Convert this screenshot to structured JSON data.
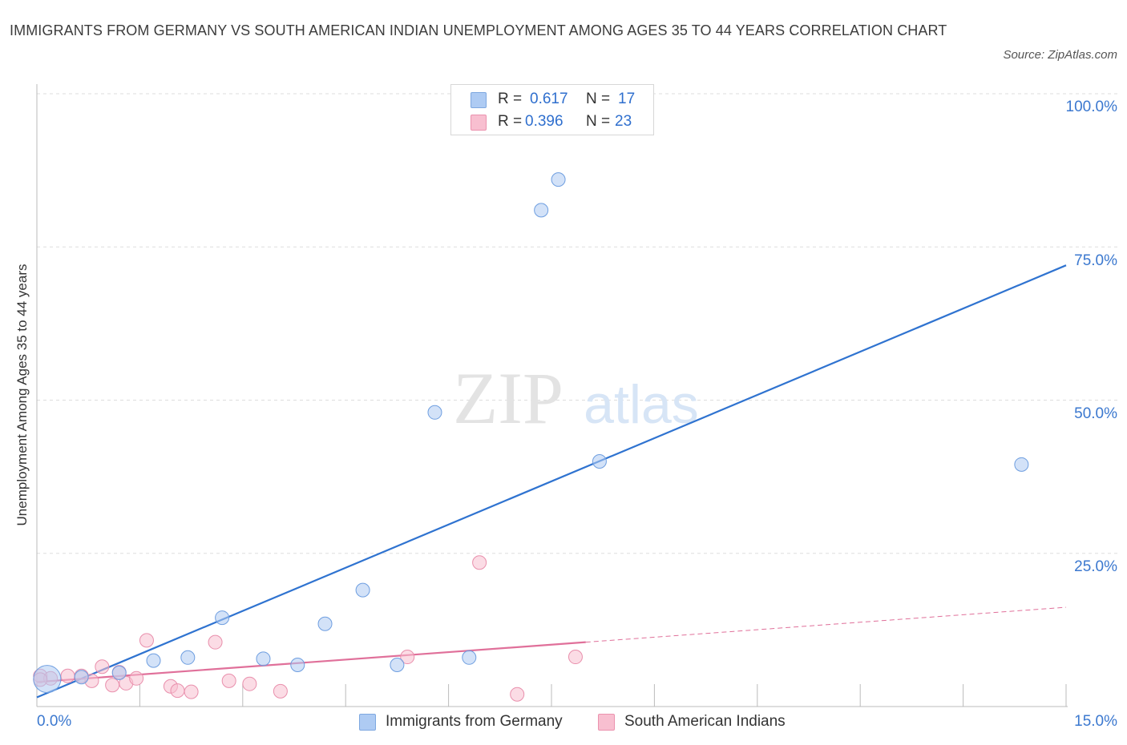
{
  "header": {
    "title": "IMMIGRANTS FROM GERMANY VS SOUTH AMERICAN INDIAN UNEMPLOYMENT AMONG AGES 35 TO 44 YEARS CORRELATION CHART",
    "source": "Source: ZipAtlas.com"
  },
  "watermark": {
    "zip": "ZIP",
    "atlas": "atlas"
  },
  "legend": {
    "rows": [
      {
        "r_label": "R =",
        "r_value": "0.617",
        "n_label": "N =",
        "n_value": "17",
        "color": "#aecbf3"
      },
      {
        "r_label": "R =",
        "r_value": "0.396",
        "n_label": "N =",
        "n_value": "23",
        "color": "#f8bfd0"
      }
    ]
  },
  "colors": {
    "blue_fill": "#aecbf3",
    "blue_line": "#2f73d0",
    "pink_fill": "#f8bfd0",
    "pink_line": "#e0709a",
    "axis_text": "#3b78cf",
    "grid": "#dddddd"
  },
  "chart_data": {
    "type": "scatter",
    "title": "IMMIGRANTS FROM GERMANY VS SOUTH AMERICAN INDIAN UNEMPLOYMENT AMONG AGES 35 TO 44 YEARS CORRELATION CHART",
    "xlabel": "",
    "ylabel": "Unemployment Among Ages 35 to 44 years",
    "xlim": [
      0,
      15
    ],
    "ylim": [
      0,
      100
    ],
    "x_tick_labels": [
      "0.0%",
      "15.0%"
    ],
    "y_ticks": [
      25,
      50,
      75,
      100
    ],
    "y_tick_labels": [
      "25.0%",
      "50.0%",
      "75.0%",
      "100.0%"
    ],
    "grid": true,
    "series": [
      {
        "name": "Immigrants from Germany",
        "color": "#aecbf3",
        "points": [
          {
            "x": 0.15,
            "y": 4.5,
            "big": true
          },
          {
            "x": 0.65,
            "y": 4.8
          },
          {
            "x": 1.2,
            "y": 5.5
          },
          {
            "x": 1.7,
            "y": 7.5
          },
          {
            "x": 2.2,
            "y": 8.0
          },
          {
            "x": 2.7,
            "y": 14.5
          },
          {
            "x": 3.3,
            "y": 7.8
          },
          {
            "x": 3.8,
            "y": 6.8
          },
          {
            "x": 4.2,
            "y": 13.5
          },
          {
            "x": 4.75,
            "y": 19.0
          },
          {
            "x": 5.25,
            "y": 6.8
          },
          {
            "x": 5.8,
            "y": 48.0
          },
          {
            "x": 6.3,
            "y": 8.0
          },
          {
            "x": 7.35,
            "y": 81.0
          },
          {
            "x": 7.6,
            "y": 86.0
          },
          {
            "x": 8.2,
            "y": 40.0
          },
          {
            "x": 14.35,
            "y": 39.5
          }
        ],
        "trend": {
          "x": [
            0,
            15
          ],
          "y": [
            1.5,
            72.0
          ],
          "dashed_from": null
        }
      },
      {
        "name": "South American Indians",
        "color": "#f8bfd0",
        "points": [
          {
            "x": 0.05,
            "y": 5.0
          },
          {
            "x": 0.2,
            "y": 4.6
          },
          {
            "x": 0.45,
            "y": 5.0
          },
          {
            "x": 0.8,
            "y": 4.2
          },
          {
            "x": 0.95,
            "y": 6.5
          },
          {
            "x": 1.1,
            "y": 3.5
          },
          {
            "x": 1.3,
            "y": 3.8
          },
          {
            "x": 1.45,
            "y": 4.6
          },
          {
            "x": 1.6,
            "y": 10.8
          },
          {
            "x": 1.95,
            "y": 3.3
          },
          {
            "x": 2.05,
            "y": 2.6
          },
          {
            "x": 2.25,
            "y": 2.4
          },
          {
            "x": 2.6,
            "y": 10.5
          },
          {
            "x": 2.8,
            "y": 4.2
          },
          {
            "x": 3.1,
            "y": 3.7
          },
          {
            "x": 3.55,
            "y": 2.5
          },
          {
            "x": 5.4,
            "y": 8.1
          },
          {
            "x": 6.45,
            "y": 23.5
          },
          {
            "x": 7.0,
            "y": 2.0
          },
          {
            "x": 7.85,
            "y": 8.1
          },
          {
            "x": 0.05,
            "y": 4.4
          },
          {
            "x": 0.65,
            "y": 5.0
          },
          {
            "x": 1.2,
            "y": 5.6
          }
        ],
        "trend": {
          "x": [
            0,
            15
          ],
          "y": [
            4.0,
            16.2
          ],
          "dashed_from": 8.0
        }
      }
    ]
  },
  "bottom_legend": [
    {
      "label": "Immigrants from Germany",
      "color": "#aecbf3"
    },
    {
      "label": "South American Indians",
      "color": "#f8bfd0"
    }
  ]
}
